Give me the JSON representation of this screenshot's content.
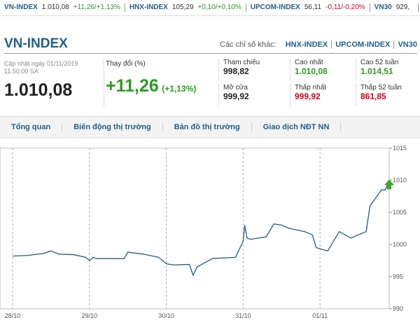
{
  "ticker": [
    {
      "name": "VN-INDEX",
      "value": "1.010,08",
      "change": "+11,26/+1,13%"
    },
    {
      "name": "HNX-INDEX",
      "value": "105,29",
      "change": "+0,10/+0,10%"
    },
    {
      "name": "UPCOM-INDEX",
      "value": "56,11",
      "change": "-0,11/-0,20%"
    },
    {
      "name": "VN30",
      "value": "929,"
    }
  ],
  "header": {
    "title": "VN-INDEX",
    "other_label": "Các chỉ số khác:",
    "other_links": [
      "HNX-INDEX",
      "UPCOM-INDEX",
      "VN30"
    ]
  },
  "summary": {
    "updated": "Cập nhật ngày 01/11/2019",
    "time": "11:50:00 SA",
    "index": "1.010,08",
    "change_label": "Thay đổi (%)",
    "change": "+11,26",
    "change_pct": "(+1,13%)"
  },
  "stats": [
    {
      "label": "Tham chiếu",
      "value": "998,82"
    },
    {
      "label": "Cao nhất",
      "value": "1.010,08"
    },
    {
      "label": "Cao 52 tuần",
      "value": "1.014,51"
    },
    {
      "label": "Mở cửa",
      "value": "999,92"
    },
    {
      "label": "Thấp nhất",
      "value": "999,92"
    },
    {
      "label": "Thấp 52 tuần",
      "value": "861,85"
    }
  ],
  "tabs": [
    "Tổng quan",
    "Biến động thị trường",
    "Bản đồ thị trường",
    "Giao dịch NĐT NN"
  ],
  "chart_data": {
    "type": "line",
    "x": [
      0,
      0.2,
      0.4,
      0.5,
      0.6,
      0.8,
      0.95,
      1.0,
      1.05,
      1.1,
      1.45,
      1.5,
      1.7,
      1.9,
      2.0,
      2.1,
      2.3,
      2.35,
      2.4,
      2.6,
      2.9,
      3.0,
      3.02,
      3.05,
      3.1,
      3.3,
      3.4,
      3.5,
      3.6,
      3.8,
      3.9,
      3.95,
      4.1,
      4.25,
      4.4,
      4.6,
      4.65,
      4.8,
      4.85,
      4.9
    ],
    "series": [
      {
        "color": "#1f5f7f",
        "values": [
          998.2,
          998.3,
          998.6,
          999.0,
          998.5,
          998.4,
          998.0,
          997.5,
          998.0,
          997.8,
          997.8,
          998.8,
          998.5,
          998.0,
          997.0,
          996.8,
          996.9,
          995.2,
          996.5,
          997.8,
          998.0,
          1000.5,
          1003.0,
          1001.0,
          1000.8,
          1001.2,
          1003.2,
          1003.0,
          1002.5,
          1002.0,
          1001.5,
          999.5,
          999.0,
          1002.0,
          1001.0,
          1002.0,
          1006.0,
          1008.5,
          1008.5,
          1010.0
        ]
      }
    ],
    "xlim": [
      0,
      4.9
    ],
    "xticks": [
      {
        "value": 0,
        "label": "28/10"
      },
      {
        "value": 1,
        "label": "29/10"
      },
      {
        "value": 2,
        "label": "30/10"
      },
      {
        "value": 3,
        "label": "31/10"
      },
      {
        "value": 4,
        "label": "01/11"
      }
    ],
    "ylim": [
      990,
      1015
    ],
    "yticks": [
      990,
      995,
      1000,
      1005,
      1010,
      1015
    ],
    "grid": true
  }
}
